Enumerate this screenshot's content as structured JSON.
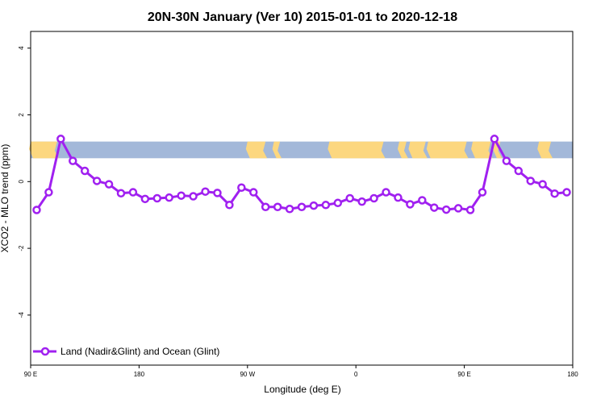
{
  "chart_data": {
    "type": "line",
    "title": "20N-30N January (Ver 10)   2015-01-01 to 2020-12-18",
    "xlabel": "Longitude (deg E)",
    "ylabel": "XCO2 - MLO trend (ppm)",
    "xlim": [
      90,
      540
    ],
    "ylim": [
      -5.5,
      4.5
    ],
    "x_ticks": [
      {
        "value": 90,
        "label": "90 E"
      },
      {
        "value": 180,
        "label": "180"
      },
      {
        "value": 270,
        "label": "90 W"
      },
      {
        "value": 360,
        "label": "0"
      },
      {
        "value": 450,
        "label": "90 E"
      },
      {
        "value": 540,
        "label": "180"
      }
    ],
    "y_ticks": [
      {
        "value": 4,
        "label": "4"
      },
      {
        "value": 2,
        "label": "2"
      },
      {
        "value": 0,
        "label": "0"
      },
      {
        "value": -2,
        "label": "-2"
      },
      {
        "value": -4,
        "label": "-4"
      }
    ],
    "series": [
      {
        "name": "Land (Nadir&Glint) and Ocean (Glint)",
        "color": "#a020f0",
        "x": [
          95,
          105,
          115,
          125,
          135,
          145,
          155,
          165,
          175,
          185,
          195,
          205,
          215,
          225,
          235,
          245,
          255,
          265,
          275,
          285,
          295,
          305,
          315,
          325,
          335,
          345,
          355,
          365,
          375,
          385,
          395,
          405,
          415,
          425,
          435,
          445,
          455,
          465,
          475,
          485,
          495,
          505,
          515,
          525,
          535
        ],
        "y": [
          -0.85,
          -0.32,
          1.28,
          0.62,
          0.32,
          0.02,
          -0.08,
          -0.35,
          -0.32,
          -0.52,
          -0.5,
          -0.48,
          -0.42,
          -0.44,
          -0.3,
          -0.34,
          -0.7,
          -0.18,
          -0.32,
          -0.76,
          -0.76,
          -0.82,
          -0.76,
          -0.72,
          -0.7,
          -0.64,
          -0.5,
          -0.6,
          -0.5,
          -0.32,
          -0.48,
          -0.68,
          -0.56,
          -0.78,
          -0.84,
          -0.8,
          -0.85,
          -0.32,
          1.28,
          0.62,
          0.32,
          0.02,
          -0.08,
          -0.36,
          -0.32
        ]
      }
    ],
    "map_strip": {
      "y_range": [
        0.7,
        1.2
      ],
      "ocean_color": "#a3b8d9",
      "land_color": "#fcd77f"
    },
    "legend": {
      "position": "bottom-left",
      "label": "Land (Nadir&Glint) and Ocean (Glint)"
    }
  }
}
